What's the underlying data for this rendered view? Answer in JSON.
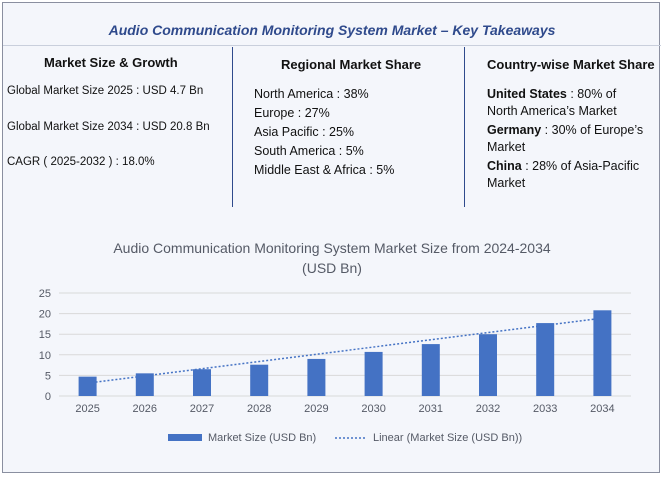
{
  "header": {
    "title": "Audio Communication Monitoring System Market – Key Takeaways"
  },
  "market_size": {
    "title": "Market Size & Growth",
    "lines": [
      "Global Market Size 2025 : USD 4.7 Bn",
      "Global Market Size 2034 : USD 20.8 Bn",
      "CAGR ( 2025-2032 ) : 18.0%"
    ]
  },
  "regional": {
    "title": "Regional Market Share",
    "lines": [
      "North America : 38%",
      "Europe : 27%",
      "Asia Pacific : 25%",
      "South America : 5%",
      "Middle East & Africa : 5%"
    ]
  },
  "country": {
    "title": "Country-wise Market Share",
    "items": [
      {
        "name": "United States",
        "line1": " : 80% of",
        "line2": "North America’s Market"
      },
      {
        "name": "Germany",
        "line1": " : 30% of Europe’s",
        "line2": "Market"
      },
      {
        "name": "China",
        "line1": " : 28% of Asia-Pacific",
        "line2": "Market"
      }
    ]
  },
  "chart_data": {
    "type": "bar",
    "title": "Audio Communication Monitoring System Market Size from 2024-2034",
    "subtitle": "(USD Bn)",
    "categories": [
      "2025",
      "2026",
      "2027",
      "2028",
      "2029",
      "2030",
      "2031",
      "2032",
      "2033",
      "2034"
    ],
    "series": [
      {
        "name": "Market Size (USD Bn)",
        "values": [
          4.7,
          5.5,
          6.5,
          7.6,
          9.0,
          10.7,
          12.6,
          15.0,
          17.7,
          20.8
        ]
      }
    ],
    "trendline": {
      "name": "Linear (Market Size (USD Bn))",
      "type": "linear"
    },
    "ylim": [
      0,
      25
    ],
    "yticks": [
      0,
      5,
      10,
      15,
      20,
      25
    ],
    "grid": true,
    "legend": "bottom",
    "colors": {
      "bar": "#4472c4",
      "trend": "#4472c4",
      "grid": "#d9d9d9"
    }
  }
}
